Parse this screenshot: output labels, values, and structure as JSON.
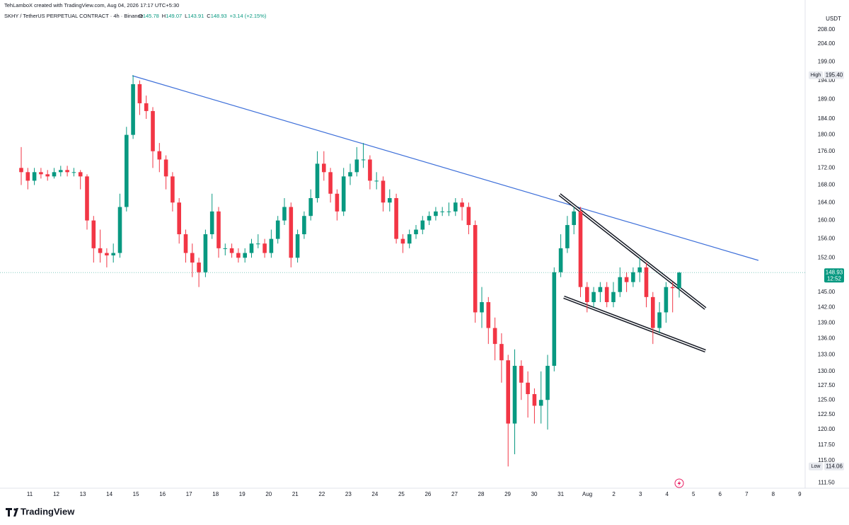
{
  "chart_data": {
    "type": "candlestick",
    "credit": "TehLamboX created with TradingView.com, Aug 04, 2026 17:17 UTC+5:30",
    "title": "SKHY / TetherUS PERPETUAL CONTRACT · 4h · Binance",
    "ohlc_labels": [
      "O",
      "H",
      "L",
      "C"
    ],
    "change": "+3.14 (+2.15%)",
    "currency": "USDT",
    "log_scale": true,
    "up_color": "#089981",
    "down_color": "#f23645",
    "x_labels": [
      "11",
      "12",
      "13",
      "14",
      "15",
      "16",
      "17",
      "18",
      "19",
      "20",
      "21",
      "22",
      "23",
      "24",
      "25",
      "26",
      "27",
      "28",
      "29",
      "30",
      "31",
      "Aug",
      "2",
      "3",
      "4",
      "5",
      "6",
      "7",
      "8",
      "9"
    ],
    "open": [
      172,
      171,
      169,
      171,
      170.5,
      170,
      171,
      171.5,
      171,
      171,
      170,
      160,
      154,
      153,
      152.5,
      153,
      163,
      180,
      193,
      188,
      186,
      176,
      174,
      170,
      164,
      157,
      153,
      151,
      149,
      157,
      162,
      154,
      154,
      153,
      152,
      153,
      155,
      155,
      153,
      156,
      160,
      163,
      152,
      157,
      161,
      165,
      173,
      171,
      166,
      162,
      170,
      171,
      174,
      174,
      169,
      169,
      164,
      165,
      156,
      155,
      157,
      158,
      160,
      161,
      162,
      162,
      162,
      164,
      163,
      159,
      141,
      143,
      138,
      135,
      132,
      121,
      131,
      128,
      126,
      124,
      125,
      131,
      149,
      154,
      159,
      162,
      146,
      143,
      145,
      146,
      143,
      145,
      148,
      147,
      149,
      150,
      144,
      138,
      141,
      146,
      145.78
    ],
    "high": [
      177,
      172,
      172,
      172,
      171.5,
      172,
      172.5,
      172.5,
      172,
      171.5,
      170.5,
      161,
      158,
      154,
      155,
      166,
      182,
      195.4,
      194,
      190,
      187,
      178,
      175,
      171,
      165,
      158,
      155,
      152,
      158,
      166,
      163,
      155,
      155,
      154,
      154,
      156,
      157,
      156,
      158,
      161,
      165,
      164,
      158,
      162,
      167,
      176,
      176,
      172,
      167,
      172,
      173,
      177,
      178,
      175,
      171,
      170,
      167,
      166,
      157,
      158,
      159,
      161,
      162,
      163,
      163,
      164,
      165,
      165,
      164,
      160,
      146,
      144,
      140,
      137,
      133,
      134,
      132,
      130,
      127,
      130,
      133,
      150,
      157,
      161,
      163,
      163,
      147,
      146,
      147,
      147,
      147,
      150,
      149,
      150,
      152,
      151,
      145,
      143,
      147,
      147,
      149.07
    ],
    "low": [
      168,
      167,
      168,
      169.5,
      169,
      169.5,
      170,
      170,
      170,
      167,
      158,
      151,
      151,
      150,
      151,
      152,
      162,
      179,
      185,
      184,
      172,
      171,
      167,
      162,
      155,
      151,
      148,
      146,
      148,
      156,
      152,
      152.5,
      152,
      151,
      151,
      152,
      154,
      152,
      152,
      155,
      159,
      150,
      151,
      156,
      160,
      164,
      169,
      164,
      160,
      161,
      168,
      170,
      172,
      167,
      167,
      162,
      162,
      155,
      153,
      154,
      156,
      157,
      159,
      160,
      161,
      161,
      161,
      160,
      157,
      139,
      138,
      135,
      132,
      128,
      114.06,
      116,
      125,
      122,
      121,
      121,
      120,
      130,
      148,
      153,
      157,
      144,
      141,
      142,
      143,
      142,
      142,
      144,
      145,
      146,
      147,
      142,
      135,
      137,
      139,
      141,
      143.91
    ],
    "close": [
      171,
      169,
      171,
      170.5,
      170,
      171,
      171.5,
      171,
      171,
      170,
      160,
      154,
      153,
      152.5,
      153,
      163,
      180,
      193,
      188,
      186,
      176,
      174,
      170,
      164,
      157,
      153,
      151,
      149,
      157,
      162,
      154,
      154,
      153,
      152,
      153,
      155,
      155,
      153,
      156,
      160,
      163,
      152,
      157,
      161,
      165,
      173,
      171,
      166,
      162,
      170,
      171,
      174,
      174,
      169,
      169,
      164,
      165,
      156,
      155,
      157,
      158,
      160,
      161,
      162,
      162,
      162,
      164,
      163,
      159,
      141,
      143,
      138,
      135,
      132,
      121,
      131,
      128,
      126,
      124,
      125,
      131,
      149,
      154,
      159,
      162,
      146,
      143,
      145,
      146,
      143,
      145,
      148,
      147,
      149,
      150,
      144,
      138,
      141,
      146,
      145.78,
      148.93
    ],
    "high_marker": {
      "text": "High",
      "value": 195.4,
      "label": "195.40"
    },
    "low_marker": {
      "text": "Low",
      "value": 114.06,
      "label": "114.06"
    },
    "countdown": "12:52",
    "ylim": [
      110.7,
      216.7
    ],
    "yticks": [
      {
        "value": 208,
        "label": "208.00"
      },
      {
        "value": 204,
        "label": "204.00"
      },
      {
        "value": 199,
        "label": "199.00"
      },
      {
        "value": 194,
        "label": "194.00"
      },
      {
        "value": 189,
        "label": "189.00"
      },
      {
        "value": 184,
        "label": "184.00"
      },
      {
        "value": 180,
        "label": "180.00"
      },
      {
        "value": 176,
        "label": "176.00"
      },
      {
        "value": 172,
        "label": "172.00"
      },
      {
        "value": 168,
        "label": "168.00"
      },
      {
        "value": 164,
        "label": "164.00"
      },
      {
        "value": 160,
        "label": "160.00"
      },
      {
        "value": 156,
        "label": "156.00"
      },
      {
        "value": 152,
        "label": "152.00"
      },
      {
        "value": 145,
        "label": "145.00"
      },
      {
        "value": 142,
        "label": "142.00"
      },
      {
        "value": 139,
        "label": "139.00"
      },
      {
        "value": 136,
        "label": "136.00"
      },
      {
        "value": 133,
        "label": "133.00"
      },
      {
        "value": 130,
        "label": "130.00"
      },
      {
        "value": 127.5,
        "label": "127.50"
      },
      {
        "value": 125,
        "label": "125.00"
      },
      {
        "value": 122.5,
        "label": "122.50"
      },
      {
        "value": 120,
        "label": "120.00"
      },
      {
        "value": 117.5,
        "label": "117.50"
      },
      {
        "value": 115,
        "label": "115.00"
      },
      {
        "value": 111.5,
        "label": "111.50"
      }
    ],
    "brand": "TradingView"
  }
}
